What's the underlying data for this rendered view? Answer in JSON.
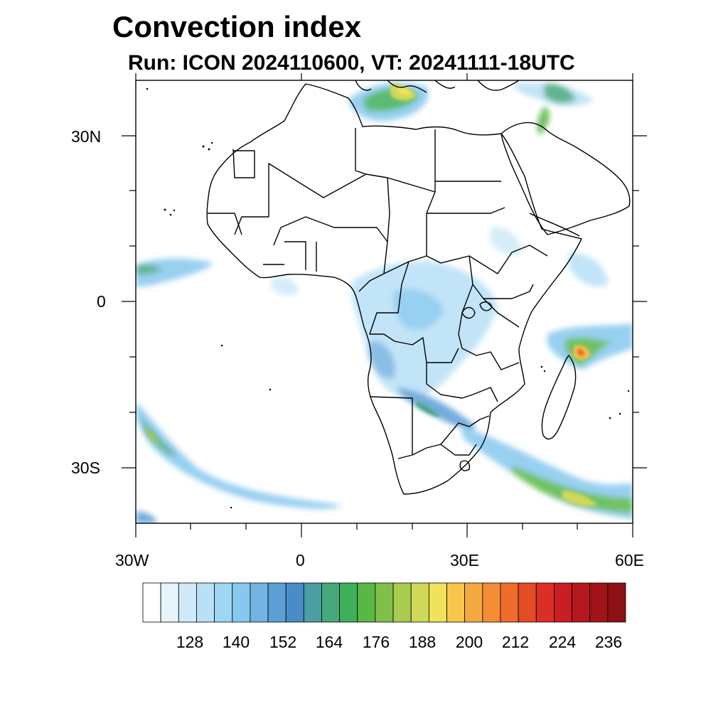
{
  "title": "Convection index",
  "subtitle": "Run: ICON 2024110600,  VT: 20241111-18UTC",
  "map": {
    "region": "Africa",
    "lon_range": [
      -30,
      60
    ],
    "lat_range": [
      -40,
      40
    ],
    "y_tick_labels": [
      "30N",
      "0",
      "30S"
    ],
    "x_tick_labels": [
      "30W",
      "0",
      "30E",
      "60E"
    ]
  },
  "colorbar": {
    "labels": [
      "128",
      "140",
      "152",
      "164",
      "176",
      "188",
      "200",
      "212",
      "224",
      "236"
    ],
    "colors": [
      "#ffffff",
      "#e6f4fc",
      "#cfe9f8",
      "#b8e0f7",
      "#9fd6f3",
      "#86c8ee",
      "#74b4e2",
      "#5b9fd6",
      "#4a8cc8",
      "#4a9ea4",
      "#47a87c",
      "#3fb05a",
      "#58b846",
      "#80c04a",
      "#a8cc4e",
      "#d0d85a",
      "#f0e25a",
      "#f8c64c",
      "#f6a840",
      "#f48c36",
      "#ee6c2c",
      "#e44c26",
      "#da2e26",
      "#c81e24",
      "#b4181e",
      "#a0141a",
      "#8c1016"
    ]
  }
}
